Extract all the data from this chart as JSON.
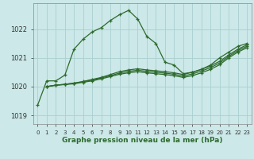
{
  "title": "Graphe pression niveau de la mer (hPa)",
  "bg_color": "#cce8e8",
  "grid_color": "#aacfcf",
  "line_color": "#2d6a2d",
  "ylim": [
    1018.7,
    1022.9
  ],
  "xlim": [
    -0.5,
    23.5
  ],
  "yticks": [
    1019,
    1020,
    1021,
    1022
  ],
  "xticks": [
    0,
    1,
    2,
    3,
    4,
    5,
    6,
    7,
    8,
    9,
    10,
    11,
    12,
    13,
    14,
    15,
    16,
    17,
    18,
    19,
    20,
    21,
    22,
    23
  ],
  "lines": [
    [
      1019.35,
      1020.2,
      1020.2,
      1020.4,
      1021.3,
      1021.65,
      1021.9,
      1022.05,
      1022.3,
      1022.5,
      1022.65,
      1022.35,
      1021.75,
      1021.5,
      1020.85,
      1020.75,
      1020.45,
      1020.5,
      1020.6,
      1020.75,
      1021.0,
      1021.2,
      1021.4,
      1021.5
    ],
    [
      null,
      1020.0,
      1020.05,
      1020.08,
      1020.12,
      1020.18,
      1020.25,
      1020.32,
      1020.42,
      1020.52,
      1020.58,
      1020.62,
      1020.58,
      1020.55,
      1020.52,
      1020.48,
      1020.42,
      1020.5,
      1020.6,
      1020.72,
      1020.88,
      1021.1,
      1021.3,
      1021.45
    ],
    [
      null,
      1020.0,
      1020.05,
      1020.08,
      1020.12,
      1020.17,
      1020.23,
      1020.3,
      1020.38,
      1020.47,
      1020.53,
      1020.57,
      1020.53,
      1020.5,
      1020.47,
      1020.43,
      1020.37,
      1020.44,
      1020.54,
      1020.66,
      1020.82,
      1021.05,
      1021.25,
      1021.4
    ],
    [
      null,
      1020.0,
      1020.05,
      1020.07,
      1020.1,
      1020.15,
      1020.2,
      1020.27,
      1020.35,
      1020.43,
      1020.48,
      1020.52,
      1020.48,
      1020.45,
      1020.42,
      1020.38,
      1020.32,
      1020.38,
      1020.48,
      1020.6,
      1020.76,
      1021.0,
      1021.2,
      1021.35
    ]
  ],
  "xlabel_fontsize": 6.5,
  "ylabel_fontsize": 6,
  "xtick_fontsize": 5,
  "ytick_fontsize": 6
}
